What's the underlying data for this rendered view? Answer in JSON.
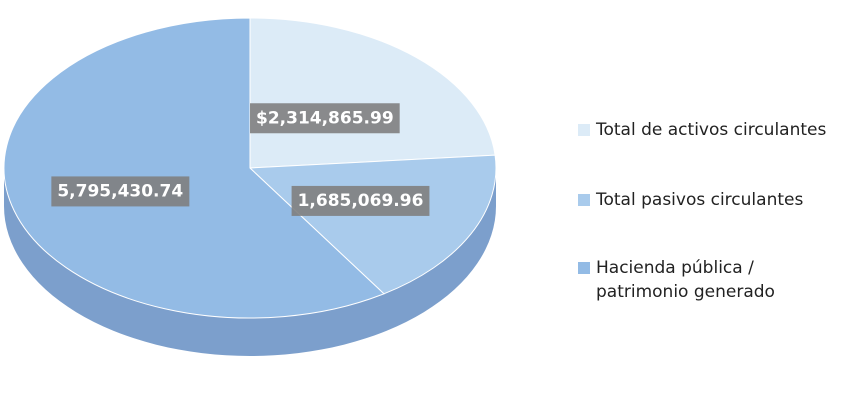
{
  "chart_data": {
    "type": "pie",
    "categories": [
      "Total de activos circulantes",
      "Total pasivos circulantes",
      "Hacienda pública / patrimonio generado"
    ],
    "values": [
      2314865.99,
      1685069.96,
      5795430.74
    ],
    "value_labels": [
      "$2,314,865.99",
      "1,685,069.96",
      "5,795,430.74"
    ],
    "colors": [
      "#dcebf7",
      "#a9cbec",
      "#93bbe5"
    ]
  }
}
